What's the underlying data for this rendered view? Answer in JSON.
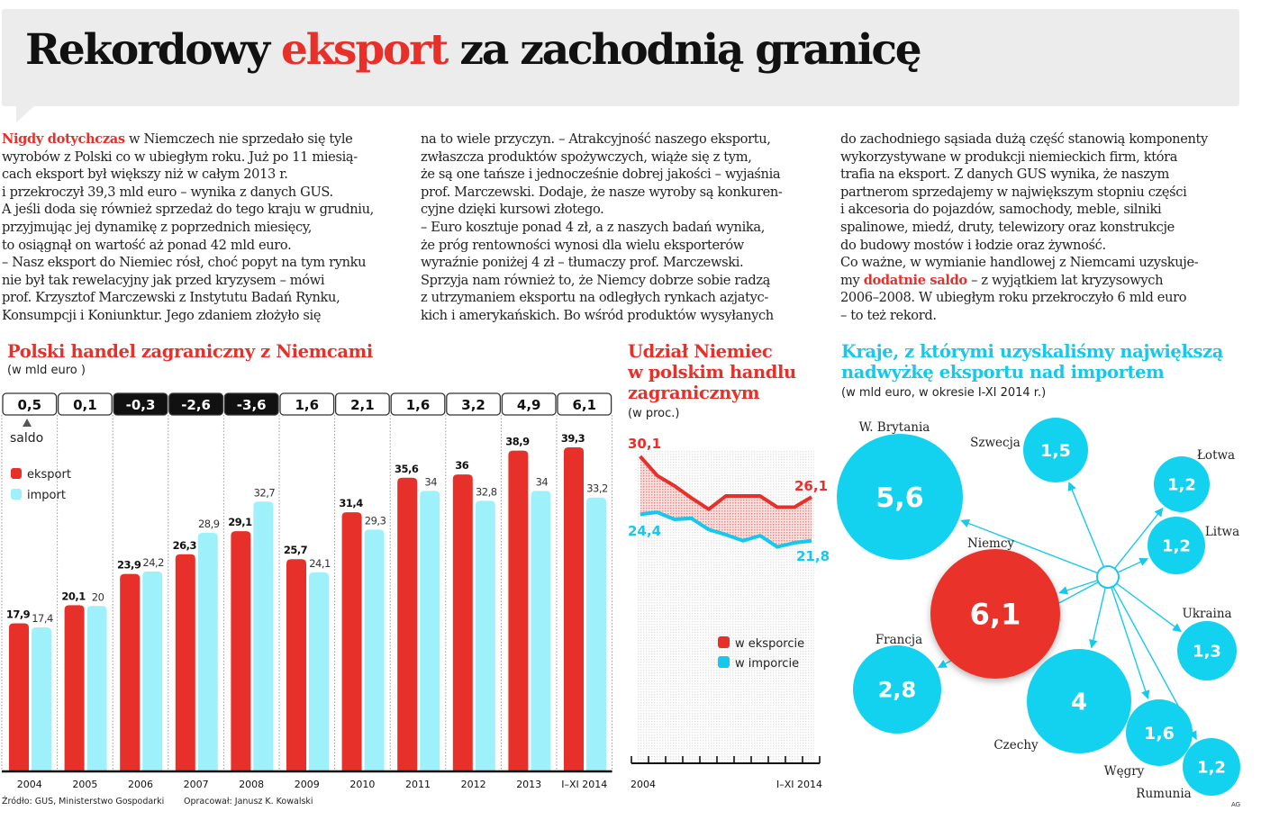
{
  "header": {
    "title_before": "Rekordowy ",
    "title_highlight": "eksport",
    "title_after": " za zachodnią granicę"
  },
  "article": {
    "columns": [
      [
        [
          {
            "hl": "Nigdy dotychczas"
          },
          " w Niemczech nie sprzedało się tyle"
        ],
        [
          "wyrobów z Polski co w ubiegłym roku. Już po 11 miesią-"
        ],
        [
          "cach eksport był większy niż w całym 2013 r."
        ],
        [
          "i przekroczył 39,3 mld euro – wynika z danych GUS."
        ],
        [
          "A jeśli doda się również sprzedaż do tego kraju w grudniu,"
        ],
        [
          "przyjmując jej dynamikę z poprzednich miesięcy,"
        ],
        [
          "to osiągnął on wartość aż ponad 42 mld euro."
        ],
        [
          "– Nasz eksport do Niemiec rósł, choć popyt na tym rynku"
        ],
        [
          "nie był tak rewelacyjny jak przed kryzysem – mówi"
        ],
        [
          "prof. Krzysztof Marczewski z Instytutu Badań Rynku,"
        ],
        [
          "Konsumpcji i Koniunktur.  Jego zdaniem złożyło się"
        ]
      ],
      [
        [
          "na to wiele przyczyn. – Atrakcyjność naszego eksportu,"
        ],
        [
          "zwłaszcza produktów spożywczych, wiąże się z tym,"
        ],
        [
          "że są one tańsze i jednocześnie dobrej jakości – wyjaśnia"
        ],
        [
          "prof. Marczewski. Dodaje, że nasze wyroby są konkuren-"
        ],
        [
          "cyjne dzięki kursowi złotego."
        ],
        [
          "– Euro kosztuje ponad 4 zł, a z naszych badań wynika,"
        ],
        [
          "że próg rentowności wynosi dla wielu eksporterów"
        ],
        [
          "wyraźnie poniżej 4 zł – tłumaczy prof. Marczewski."
        ],
        [
          "Sprzyja nam również to, że  Niemcy dobrze sobie radzą"
        ],
        [
          "z utrzymaniem eksportu na odległych rynkach azjatyc-"
        ],
        [
          "kich i amerykańskich. Bo wśród produktów wysyłanych"
        ]
      ],
      [
        [
          "do zachodniego sąsiada dużą część stanowią komponenty"
        ],
        [
          "wykorzystywane w produkcji niemieckich firm, która"
        ],
        [
          "trafia na eksport.  Z danych GUS wynika, że naszym"
        ],
        [
          "partnerom sprzedajemy w największym stopniu części"
        ],
        [
          "i akcesoria do pojazdów, samochody, meble, silniki"
        ],
        [
          "spalinowe, miedź, druty, telewizory oraz konstrukcje"
        ],
        [
          "do budowy mostów i łodzie oraz żywność."
        ],
        [
          "Co ważne, w wymianie handlowej z Niemcami uzyskuje-"
        ],
        [
          "my ",
          {
            "hl": "dodatnie saldo"
          },
          " – z wyjątkiem lat kryzysowych"
        ],
        [
          "2006–2008. W ubiegłym roku przekroczyło 6 mld euro"
        ],
        [
          "– to też rekord."
        ]
      ]
    ]
  },
  "colors": {
    "red": "#e8302a",
    "import_cyan": "#9ef1fa",
    "cyan": "#13d2ef",
    "dark": "#111111"
  },
  "chart_data": [
    {
      "type": "bar",
      "title": "Polski handel zagraniczny z Niemcami",
      "subtitle": "(w mld euro )",
      "categories": [
        "2004",
        "2005",
        "2006",
        "2007",
        "2008",
        "2009",
        "2010",
        "2011",
        "2012",
        "2013",
        "I–XI 2014"
      ],
      "series": [
        {
          "name": "eksport",
          "values": [
            17.9,
            20.1,
            23.9,
            26.3,
            29.1,
            25.7,
            31.4,
            35.6,
            36,
            38.9,
            39.3
          ],
          "labels": [
            "17,9",
            "20,1",
            "23,9",
            "26,3",
            "29,1",
            "25,7",
            "31,4",
            "35,6",
            "36",
            "38,9",
            "39,3"
          ]
        },
        {
          "name": "import",
          "values": [
            17.4,
            20,
            24.2,
            28.9,
            32.7,
            24.1,
            29.3,
            34,
            32.8,
            34,
            33.2
          ],
          "labels": [
            "17,4",
            "20",
            "24,2",
            "28,9",
            "32,7",
            "24,1",
            "29,3",
            "34",
            "32,8",
            "34",
            "33,2"
          ]
        }
      ],
      "saldo_label": "saldo",
      "saldo": [
        0.5,
        0.1,
        -0.3,
        -2.6,
        -3.6,
        1.6,
        2.1,
        1.6,
        3.2,
        4.9,
        6.1
      ],
      "saldo_labels": [
        "0,5",
        "0,1",
        "-0,3",
        "-2,6",
        "-3,6",
        "1,6",
        "2,1",
        "1,6",
        "3,2",
        "4,9",
        "6,1"
      ],
      "ylim": [
        0,
        40
      ],
      "source": "Źródło: GUS, Ministerstwo Gospodarki",
      "author": "Opracował: Janusz K. Kowalski"
    },
    {
      "type": "line",
      "title_lines": [
        "Udział Niemiec",
        "w polskim handlu",
        "zagranicznym"
      ],
      "subtitle": "(w proc.)",
      "x": [
        "2004",
        "2005",
        "2006",
        "2007",
        "2008",
        "2009",
        "2010",
        "2011",
        "2012",
        "2013",
        "I–XI 2014"
      ],
      "x_tick_labels": [
        "2004",
        "I–XI 2014"
      ],
      "series": [
        {
          "name": "w eksporcie",
          "values": [
            30.1,
            28.2,
            27.2,
            26.0,
            24.9,
            26.2,
            26.2,
            26.2,
            25.1,
            25.1,
            26.1
          ],
          "start_label": "30,1",
          "end_label": "26,1"
        },
        {
          "name": "w imporcie",
          "values": [
            24.4,
            24.6,
            23.9,
            24.0,
            22.9,
            22.4,
            21.8,
            22.3,
            21.2,
            21.6,
            21.8
          ],
          "start_label": "24,4",
          "end_label": "21,8"
        }
      ],
      "ylim": [
        0,
        30.8
      ],
      "legend": "bottom-right"
    },
    {
      "type": "bubble",
      "title_lines": [
        "Kraje, z którymi uzyskaliśmy największą",
        "nadwyżkę eksportu nad importem"
      ],
      "subtitle": "(w mld euro, w okresie I-XI 2014 r.)",
      "items": [
        {
          "country": "Niemcy",
          "value": 6.1,
          "label": "6,1",
          "highlight": true
        },
        {
          "country": "W. Brytania",
          "value": 5.6,
          "label": "5,6"
        },
        {
          "country": "Czechy",
          "value": 4,
          "label": "4"
        },
        {
          "country": "Francja",
          "value": 2.8,
          "label": "2,8"
        },
        {
          "country": "Węgry",
          "value": 1.6,
          "label": "1,6"
        },
        {
          "country": "Szwecja",
          "value": 1.5,
          "label": "1,5"
        },
        {
          "country": "Ukraina",
          "value": 1.3,
          "label": "1,3"
        },
        {
          "country": "Łotwa",
          "value": 1.2,
          "label": "1,2"
        },
        {
          "country": "Litwa",
          "value": 1.2,
          "label": "1,2"
        },
        {
          "country": "Rumunia",
          "value": 1.2,
          "label": "1,2"
        }
      ],
      "credit": "AG"
    }
  ]
}
